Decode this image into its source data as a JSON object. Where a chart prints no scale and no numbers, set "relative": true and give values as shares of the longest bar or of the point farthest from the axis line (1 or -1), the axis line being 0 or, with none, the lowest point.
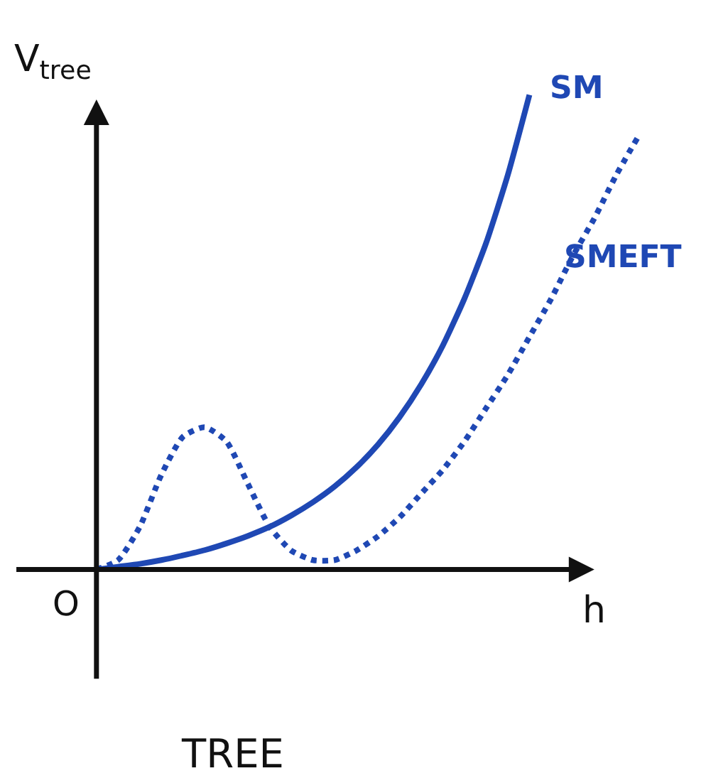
{
  "chart_data": {
    "type": "line",
    "title": "TREE",
    "xlabel": "h",
    "ylabel": "V$_{tree}$",
    "annotations": [
      "O"
    ],
    "relative": true,
    "legend": false,
    "grid": false,
    "marker": "none",
    "categories": [
      null,
      null,
      null,
      null,
      null,
      null,
      null,
      null,
      null,
      null,
      null,
      null,
      null,
      null,
      null,
      null,
      null,
      null,
      null,
      null,
      null,
      null,
      null,
      null,
      null,
      null
    ],
    "series": [
      {
        "name": "SM",
        "color": "#1f48b4",
        "line_style": "solid",
        "values": [
          0,
          0.006,
          0.012,
          0.02,
          0.03,
          0.041,
          0.055,
          0.071,
          0.09,
          0.114,
          0.142,
          0.175,
          0.215,
          0.263,
          0.321,
          0.39,
          0.472,
          0.571,
          0.688,
          0.831,
          1,
          null,
          null,
          null,
          null,
          null
        ]
      },
      {
        "name": "SMEFT",
        "color": "#1f48b4",
        "line_style": "dotted",
        "values": [
          0,
          0.02,
          0.09,
          0.2,
          0.28,
          0.3,
          0.27,
          0.18,
          0.09,
          0.04,
          0.02,
          0.02,
          0.04,
          0.07,
          0.11,
          0.16,
          0.21,
          0.27,
          0.34,
          0.41,
          0.49,
          0.57,
          0.66,
          0.74,
          0.83,
          0.91
        ]
      }
    ]
  }
}
